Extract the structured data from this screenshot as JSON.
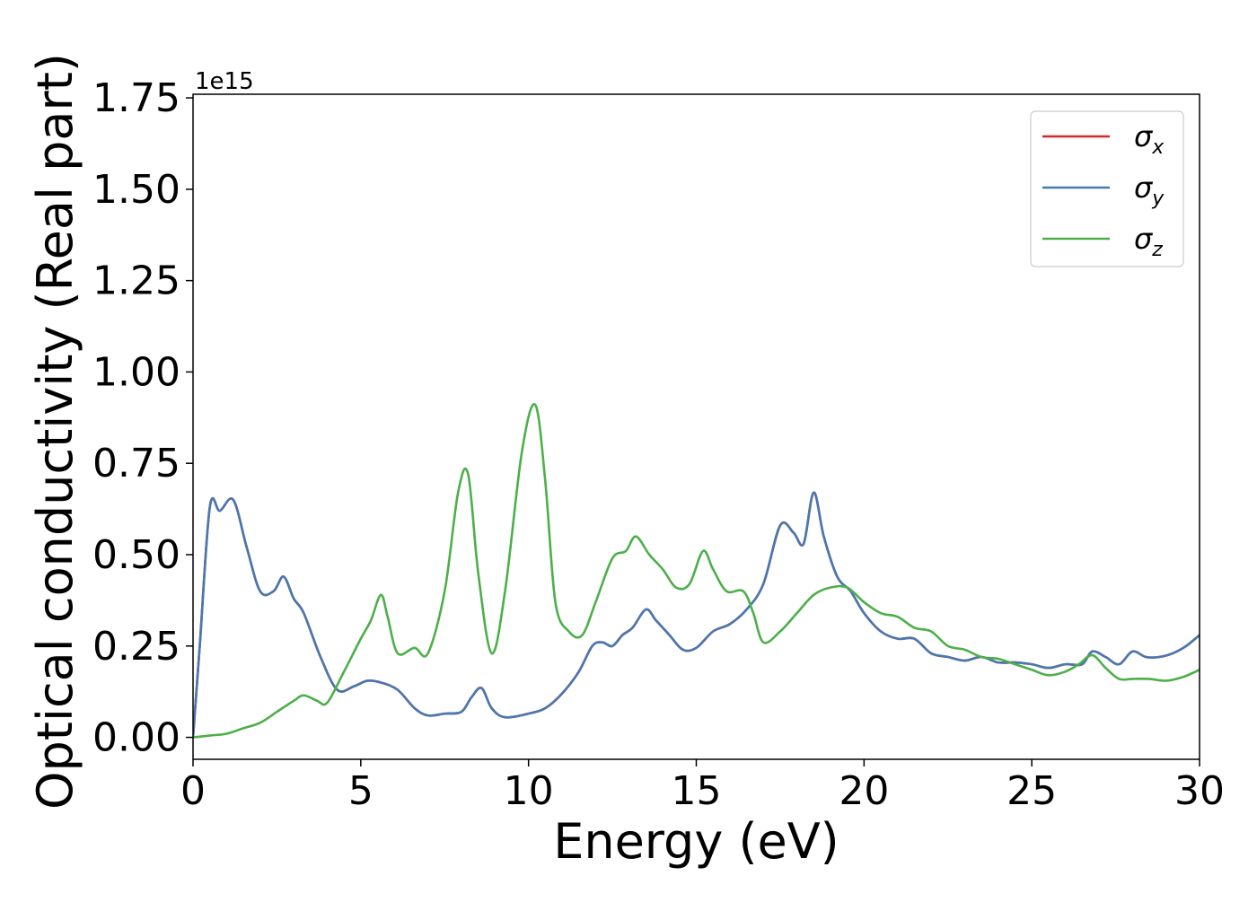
{
  "chart_data": {
    "type": "line",
    "xlabel": "Energy (eV)",
    "ylabel": "Optical conductivity (Real part)",
    "y_offset_text": "1e15",
    "xlim": [
      0,
      30
    ],
    "ylim": [
      -0.06,
      1.76
    ],
    "x_ticks": [
      0,
      5,
      10,
      15,
      20,
      25,
      30
    ],
    "x_tick_labels": [
      "0",
      "5",
      "10",
      "15",
      "20",
      "25",
      "30"
    ],
    "y_ticks": [
      0.0,
      0.25,
      0.5,
      0.75,
      1.0,
      1.25,
      1.5,
      1.75
    ],
    "y_tick_labels": [
      "0.00",
      "0.25",
      "0.50",
      "0.75",
      "1.00",
      "1.25",
      "1.50",
      "1.75"
    ],
    "grid": false,
    "legend_position": "top-right",
    "series": [
      {
        "name": "σx",
        "symbol": "σ",
        "subscript": "x",
        "color": "#d62728",
        "x": [
          0,
          0.2,
          0.5,
          0.8,
          1.2,
          1.6,
          2.0,
          2.4,
          2.7,
          3.0,
          3.3,
          3.8,
          4.3,
          4.8,
          5.2,
          5.6,
          6.1,
          6.6,
          7.0,
          7.5,
          8.0,
          8.3,
          8.6,
          8.9,
          9.3,
          10.0,
          10.5,
          11.0,
          11.5,
          11.9,
          12.2,
          12.5,
          12.8,
          13.1,
          13.5,
          13.8,
          14.2,
          14.6,
          15.0,
          15.5,
          16.0,
          16.5,
          17.0,
          17.5,
          17.9,
          18.2,
          18.5,
          18.8,
          19.2,
          19.6,
          20.0,
          20.5,
          21.0,
          21.5,
          22.0,
          22.5,
          23.0,
          23.5,
          24.0,
          24.5,
          25.0,
          25.5,
          26.0,
          26.5,
          26.8,
          27.2,
          27.6,
          28.0,
          28.4,
          28.8,
          29.2,
          29.6,
          30.0
        ],
        "values": [
          0.0,
          0.25,
          0.63,
          0.62,
          0.65,
          0.52,
          0.4,
          0.4,
          0.44,
          0.38,
          0.34,
          0.22,
          0.13,
          0.14,
          0.155,
          0.15,
          0.13,
          0.08,
          0.06,
          0.065,
          0.07,
          0.11,
          0.135,
          0.08,
          0.055,
          0.065,
          0.08,
          0.12,
          0.18,
          0.25,
          0.26,
          0.25,
          0.28,
          0.3,
          0.35,
          0.32,
          0.28,
          0.24,
          0.245,
          0.29,
          0.31,
          0.35,
          0.42,
          0.58,
          0.56,
          0.53,
          0.67,
          0.55,
          0.44,
          0.4,
          0.34,
          0.29,
          0.27,
          0.27,
          0.23,
          0.22,
          0.21,
          0.22,
          0.205,
          0.205,
          0.2,
          0.19,
          0.2,
          0.2,
          0.235,
          0.22,
          0.2,
          0.235,
          0.22,
          0.22,
          0.23,
          0.25,
          0.28
        ]
      },
      {
        "name": "σy",
        "symbol": "σ",
        "subscript": "y",
        "color": "#4878b0",
        "x": [
          0,
          0.2,
          0.5,
          0.8,
          1.2,
          1.6,
          2.0,
          2.4,
          2.7,
          3.0,
          3.3,
          3.8,
          4.3,
          4.8,
          5.2,
          5.6,
          6.1,
          6.6,
          7.0,
          7.5,
          8.0,
          8.3,
          8.6,
          8.9,
          9.3,
          10.0,
          10.5,
          11.0,
          11.5,
          11.9,
          12.2,
          12.5,
          12.8,
          13.1,
          13.5,
          13.8,
          14.2,
          14.6,
          15.0,
          15.5,
          16.0,
          16.5,
          17.0,
          17.5,
          17.9,
          18.2,
          18.5,
          18.8,
          19.2,
          19.6,
          20.0,
          20.5,
          21.0,
          21.5,
          22.0,
          22.5,
          23.0,
          23.5,
          24.0,
          24.5,
          25.0,
          25.5,
          26.0,
          26.5,
          26.8,
          27.2,
          27.6,
          28.0,
          28.4,
          28.8,
          29.2,
          29.6,
          30.0
        ],
        "values": [
          0.0,
          0.25,
          0.63,
          0.62,
          0.65,
          0.52,
          0.4,
          0.4,
          0.44,
          0.38,
          0.34,
          0.22,
          0.13,
          0.14,
          0.155,
          0.15,
          0.13,
          0.08,
          0.06,
          0.065,
          0.07,
          0.11,
          0.135,
          0.08,
          0.055,
          0.065,
          0.08,
          0.12,
          0.18,
          0.25,
          0.26,
          0.25,
          0.28,
          0.3,
          0.35,
          0.32,
          0.28,
          0.24,
          0.245,
          0.29,
          0.31,
          0.35,
          0.42,
          0.58,
          0.56,
          0.53,
          0.67,
          0.55,
          0.44,
          0.4,
          0.34,
          0.29,
          0.27,
          0.27,
          0.23,
          0.22,
          0.21,
          0.22,
          0.205,
          0.205,
          0.2,
          0.19,
          0.2,
          0.2,
          0.235,
          0.22,
          0.2,
          0.235,
          0.22,
          0.22,
          0.23,
          0.25,
          0.28
        ]
      },
      {
        "name": "σz",
        "symbol": "σ",
        "subscript": "z",
        "color": "#4daf4a",
        "x": [
          0,
          0.5,
          1.0,
          1.5,
          2.0,
          2.5,
          3.0,
          3.3,
          3.7,
          4.0,
          4.5,
          5.0,
          5.3,
          5.6,
          5.8,
          6.1,
          6.6,
          7.0,
          7.5,
          7.9,
          8.2,
          8.5,
          8.9,
          9.3,
          9.8,
          10.2,
          10.5,
          10.8,
          11.2,
          11.6,
          12.0,
          12.5,
          12.9,
          13.2,
          13.6,
          14.0,
          14.4,
          14.8,
          15.2,
          15.5,
          15.9,
          16.4,
          16.7,
          17.0,
          17.5,
          18.0,
          18.5,
          19.0,
          19.5,
          20.0,
          20.5,
          21.0,
          21.5,
          22.0,
          22.5,
          23.0,
          23.5,
          24.0,
          24.5,
          25.0,
          25.5,
          26.0,
          26.4,
          26.8,
          27.2,
          27.6,
          28.0,
          28.5,
          29.0,
          29.5,
          30.0
        ],
        "values": [
          0.0,
          0.005,
          0.01,
          0.025,
          0.04,
          0.07,
          0.1,
          0.115,
          0.1,
          0.095,
          0.18,
          0.27,
          0.32,
          0.39,
          0.33,
          0.23,
          0.245,
          0.23,
          0.4,
          0.67,
          0.72,
          0.45,
          0.23,
          0.4,
          0.78,
          0.91,
          0.7,
          0.37,
          0.29,
          0.28,
          0.37,
          0.49,
          0.51,
          0.55,
          0.5,
          0.46,
          0.41,
          0.42,
          0.51,
          0.46,
          0.4,
          0.4,
          0.34,
          0.26,
          0.29,
          0.34,
          0.39,
          0.41,
          0.41,
          0.37,
          0.34,
          0.33,
          0.3,
          0.29,
          0.25,
          0.24,
          0.22,
          0.215,
          0.2,
          0.185,
          0.17,
          0.18,
          0.2,
          0.225,
          0.19,
          0.16,
          0.16,
          0.16,
          0.155,
          0.165,
          0.185
        ]
      }
    ]
  }
}
